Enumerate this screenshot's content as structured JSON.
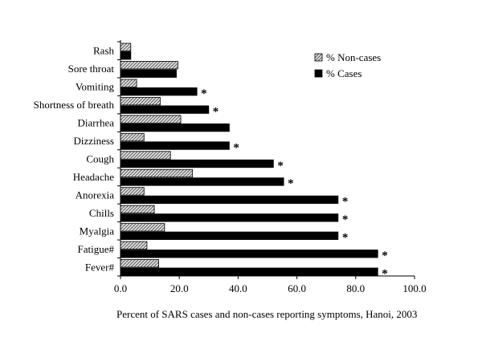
{
  "chart_data": {
    "type": "bar",
    "orientation": "horizontal",
    "title": "",
    "xlabel": "Percent of SARS cases and non-cases reporting symptoms, Hanoi, 2003",
    "ylabel": "",
    "xlim": [
      0,
      100
    ],
    "xticks": [
      "0.0",
      "20.0",
      "40.0",
      "60.0",
      "80.0",
      "100.0"
    ],
    "categories": [
      "Rash",
      "Sore throat",
      "Vomiting",
      "Shortness of breath",
      "Diarrhea",
      "Dizziness",
      "Cough",
      "Headache",
      "Anorexia",
      "Chills",
      "Myalgia",
      "Fatigue#",
      "Fever#"
    ],
    "series": [
      {
        "name": "% Non-cases",
        "values": [
          3.5,
          19.5,
          5.5,
          13.5,
          20.5,
          8.0,
          17.0,
          24.5,
          8.0,
          11.5,
          15.0,
          9.0,
          13.0
        ],
        "color": "#bdbdbd",
        "pattern": "diagonal-hatch"
      },
      {
        "name": "% Cases",
        "values": [
          3.5,
          19.0,
          26.0,
          30.0,
          37.0,
          37.0,
          52.0,
          55.5,
          74.0,
          74.0,
          74.0,
          87.5,
          87.5
        ],
        "color": "#000000"
      }
    ],
    "significant": [
      "",
      "",
      "*",
      "*",
      "",
      "*",
      "*",
      "*",
      "*",
      "*",
      "*",
      "*",
      "*"
    ],
    "legend_position": "top-right",
    "grid": false
  }
}
